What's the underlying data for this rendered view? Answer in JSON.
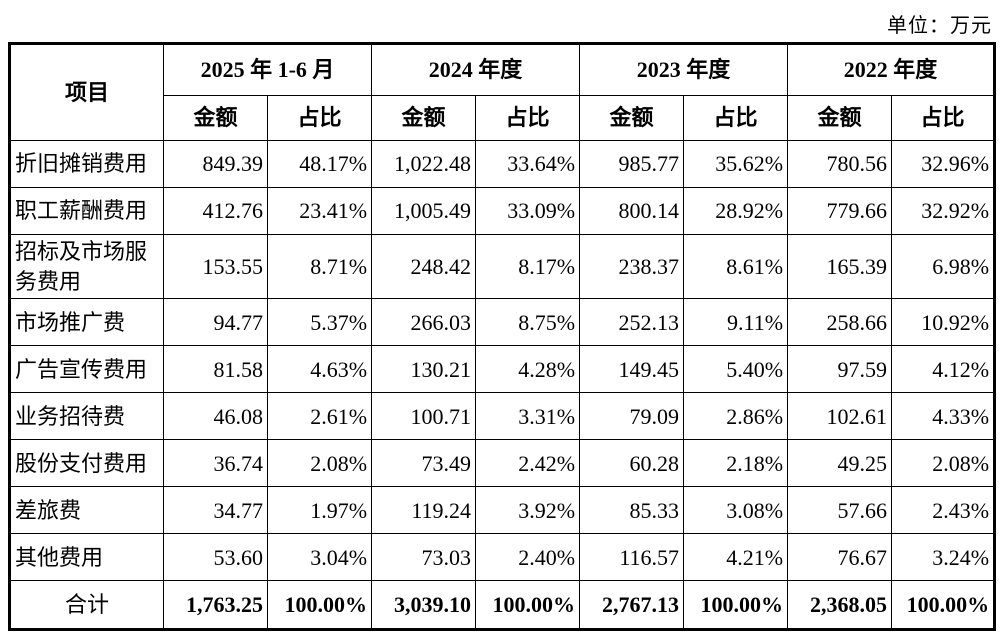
{
  "page": {
    "unit_label": "单位：万元"
  },
  "table": {
    "item_header": "项目",
    "col_groups": [
      {
        "label": "2025 年 1-6 月"
      },
      {
        "label": "2024 年度"
      },
      {
        "label": "2023 年度"
      },
      {
        "label": "2022 年度"
      }
    ],
    "sub_headers": {
      "amount": "金额",
      "ratio": "占比"
    },
    "rows": [
      {
        "item": "折旧摊销费用",
        "cells": [
          "849.39",
          "48.17%",
          "1,022.48",
          "33.64%",
          "985.77",
          "35.62%",
          "780.56",
          "32.96%"
        ]
      },
      {
        "item": "职工薪酬费用",
        "cells": [
          "412.76",
          "23.41%",
          "1,005.49",
          "33.09%",
          "800.14",
          "28.92%",
          "779.66",
          "32.92%"
        ]
      },
      {
        "item": "招标及市场服务费用",
        "cells": [
          "153.55",
          "8.71%",
          "248.42",
          "8.17%",
          "238.37",
          "8.61%",
          "165.39",
          "6.98%"
        ]
      },
      {
        "item": "市场推广费",
        "cells": [
          "94.77",
          "5.37%",
          "266.03",
          "8.75%",
          "252.13",
          "9.11%",
          "258.66",
          "10.92%"
        ]
      },
      {
        "item": "广告宣传费用",
        "cells": [
          "81.58",
          "4.63%",
          "130.21",
          "4.28%",
          "149.45",
          "5.40%",
          "97.59",
          "4.12%"
        ]
      },
      {
        "item": "业务招待费",
        "cells": [
          "46.08",
          "2.61%",
          "100.71",
          "3.31%",
          "79.09",
          "2.86%",
          "102.61",
          "4.33%"
        ]
      },
      {
        "item": "股份支付费用",
        "cells": [
          "36.74",
          "2.08%",
          "73.49",
          "2.42%",
          "60.28",
          "2.18%",
          "49.25",
          "2.08%"
        ]
      },
      {
        "item": "差旅费",
        "cells": [
          "34.77",
          "1.97%",
          "119.24",
          "3.92%",
          "85.33",
          "3.08%",
          "57.66",
          "2.43%"
        ]
      },
      {
        "item": "其他费用",
        "cells": [
          "53.60",
          "3.04%",
          "73.03",
          "2.40%",
          "116.57",
          "4.21%",
          "76.67",
          "3.24%"
        ]
      }
    ],
    "total_row": {
      "item": "合计",
      "cells": [
        "1,763.25",
        "100.00%",
        "3,039.10",
        "100.00%",
        "2,767.13",
        "100.00%",
        "2,368.05",
        "100.00%"
      ]
    }
  }
}
